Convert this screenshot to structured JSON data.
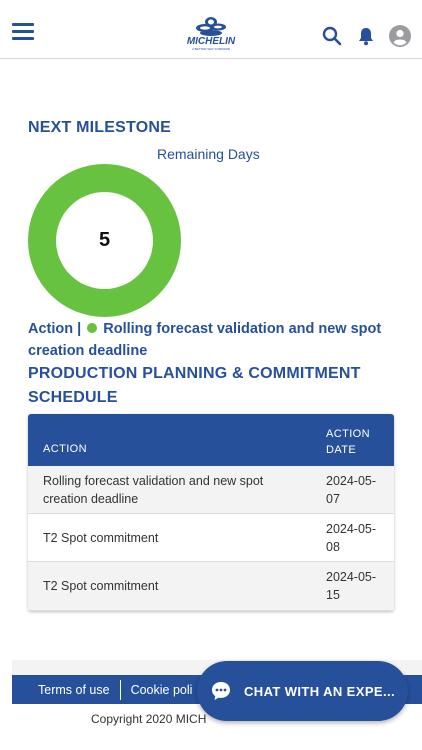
{
  "header": {
    "logo_text": "MICHELIN",
    "logo_tagline": "A BETTER WAY FORWARD"
  },
  "next_milestone": {
    "title": "NEXT MILESTONE",
    "remaining_label": "Remaining Days",
    "remaining_days": "5",
    "action_prefix": "Action |",
    "action_text": "Rolling forecast validation and new spot creation deadline",
    "status_color": "#66c23f"
  },
  "schedule": {
    "title": "PRODUCTION PLANNING & COMMITMENT SCHEDULE",
    "columns": [
      "ACTION",
      "ACTION DATE"
    ],
    "rows": [
      {
        "action": "Rolling forecast validation and new spot creation deadline",
        "date": "2024-05-07"
      },
      {
        "action": "T2 Spot commitment",
        "date": "2024-05-08"
      },
      {
        "action": "T2 Spot commitment",
        "date": "2024-05-15"
      }
    ]
  },
  "footer": {
    "links": [
      "Terms of use",
      "Cookie poli"
    ],
    "copyright": "Copyright 2020 MICH"
  },
  "chat": {
    "label": "CHAT WITH AN EXPE..."
  },
  "colors": {
    "brand_blue": "#27509b",
    "green": "#66c23f"
  }
}
